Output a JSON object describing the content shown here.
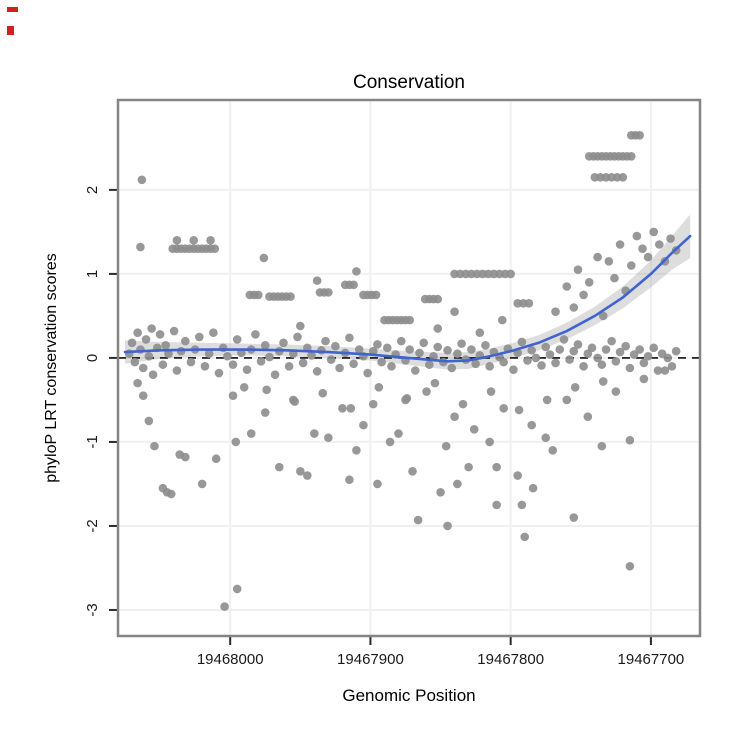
{
  "chart_data": {
    "type": "scatter",
    "title": "Conservation",
    "xlabel": "Genomic Position",
    "ylabel": "phyloP LRT conservation scores",
    "x_domain": [
      19468080,
      19467665
    ],
    "x_reversed": true,
    "y_domain": [
      -3.31,
      3.07
    ],
    "x_ticks": [
      19468000,
      19467900,
      19467800,
      19467700
    ],
    "x_tick_labels": [
      "19468000",
      "19467900",
      "19467800",
      "19467700"
    ],
    "y_ticks": [
      2,
      1,
      0,
      -1,
      -2,
      -3
    ],
    "y_tick_labels": [
      "2",
      "1",
      "0",
      "-1",
      "-2",
      "-3"
    ],
    "grid": true,
    "zero_line": 0,
    "colors": {
      "point": "#8d8d8d",
      "smooth_line": "#3f63cf",
      "band": "#9e9e9e",
      "grid": "#f0f0f0",
      "panel_border": "#858585",
      "tick": "#2b2b2b",
      "zero_dash": "#111111"
    },
    "smooth": {
      "x": [
        19468075,
        19468050,
        19468020,
        19467990,
        19467960,
        19467930,
        19467900,
        19467880,
        19467860,
        19467845,
        19467830,
        19467815,
        19467800,
        19467780,
        19467760,
        19467740,
        19467720,
        19467700,
        19467685,
        19467672
      ],
      "y": [
        0.07,
        0.09,
        0.1,
        0.1,
        0.09,
        0.07,
        0.04,
        0.01,
        -0.02,
        -0.04,
        -0.03,
        0.02,
        0.08,
        0.18,
        0.32,
        0.5,
        0.72,
        1.0,
        1.25,
        1.45
      ],
      "lo": [
        -0.07,
        -0.01,
        0.02,
        0.03,
        0.02,
        0.0,
        -0.03,
        -0.07,
        -0.11,
        -0.14,
        -0.13,
        -0.07,
        -0.01,
        0.09,
        0.22,
        0.39,
        0.59,
        0.84,
        1.05,
        1.19
      ],
      "hi": [
        0.21,
        0.19,
        0.18,
        0.17,
        0.16,
        0.14,
        0.11,
        0.09,
        0.07,
        0.06,
        0.07,
        0.11,
        0.17,
        0.27,
        0.42,
        0.61,
        0.85,
        1.16,
        1.45,
        1.71
      ]
    },
    "points": [
      [
        19468072,
        0.05
      ],
      [
        19468070,
        0.18
      ],
      [
        19468068,
        -0.05
      ],
      [
        19468066,
        0.3
      ],
      [
        19468064,
        0.1
      ],
      [
        19468062,
        -0.12
      ],
      [
        19468060,
        0.22
      ],
      [
        19468058,
        0.02
      ],
      [
        19468056,
        0.35
      ],
      [
        19468055,
        -0.2
      ],
      [
        19468052,
        0.12
      ],
      [
        19468050,
        0.28
      ],
      [
        19468048,
        -0.08
      ],
      [
        19468046,
        0.15
      ],
      [
        19468044,
        0.05
      ],
      [
        19468040,
        0.32
      ],
      [
        19468038,
        -0.15
      ],
      [
        19468035,
        0.08
      ],
      [
        19468032,
        0.2
      ],
      [
        19468028,
        -0.05
      ],
      [
        19468025,
        0.1
      ],
      [
        19468022,
        0.25
      ],
      [
        19468018,
        -0.1
      ],
      [
        19468015,
        0.05
      ],
      [
        19468012,
        0.3
      ],
      [
        19468008,
        -0.18
      ],
      [
        19468005,
        0.12
      ],
      [
        19468002,
        0.02
      ],
      [
        19467998,
        -0.08
      ],
      [
        19467995,
        0.22
      ],
      [
        19467992,
        0.06
      ],
      [
        19467988,
        -0.14
      ],
      [
        19467985,
        0.1
      ],
      [
        19467982,
        0.28
      ],
      [
        19467978,
        -0.04
      ],
      [
        19467975,
        0.15
      ],
      [
        19467972,
        0.01
      ],
      [
        19467968,
        -0.2
      ],
      [
        19467965,
        0.08
      ],
      [
        19467962,
        0.18
      ],
      [
        19467958,
        -0.1
      ],
      [
        19467955,
        0.05
      ],
      [
        19467952,
        0.25
      ],
      [
        19467948,
        -0.06
      ],
      [
        19467945,
        0.12
      ],
      [
        19467942,
        0.03
      ],
      [
        19467938,
        -0.16
      ],
      [
        19467935,
        0.09
      ],
      [
        19467932,
        0.2
      ],
      [
        19467928,
        -0.02
      ],
      [
        19467925,
        0.14
      ],
      [
        19467922,
        -0.12
      ],
      [
        19467918,
        0.06
      ],
      [
        19467915,
        0.24
      ],
      [
        19467912,
        -0.07
      ],
      [
        19467908,
        0.1
      ],
      [
        19467905,
        0.02
      ],
      [
        19467902,
        -0.18
      ],
      [
        19467898,
        0.08
      ],
      [
        19467895,
        0.16
      ],
      [
        19467892,
        -0.05
      ],
      [
        19467888,
        0.12
      ],
      [
        19467885,
        -0.1
      ],
      [
        19467882,
        0.04
      ],
      [
        19467878,
        0.2
      ],
      [
        19467875,
        -0.03
      ],
      [
        19467872,
        0.1
      ],
      [
        19467868,
        -0.15
      ],
      [
        19467865,
        0.06
      ],
      [
        19467862,
        0.18
      ],
      [
        19467858,
        -0.08
      ],
      [
        19467855,
        0.02
      ],
      [
        19467852,
        0.13
      ],
      [
        19467848,
        -0.05
      ],
      [
        19467845,
        0.09
      ],
      [
        19467842,
        -0.12
      ],
      [
        19467838,
        0.05
      ],
      [
        19467835,
        0.17
      ],
      [
        19467832,
        -0.02
      ],
      [
        19467828,
        0.1
      ],
      [
        19467825,
        -0.07
      ],
      [
        19467822,
        0.03
      ],
      [
        19467818,
        0.15
      ],
      [
        19467815,
        -0.1
      ],
      [
        19467812,
        0.07
      ],
      [
        19467808,
        0.01
      ],
      [
        19467805,
        -0.05
      ],
      [
        19467802,
        0.11
      ],
      [
        19467798,
        -0.14
      ],
      [
        19467795,
        0.06
      ],
      [
        19467792,
        0.19
      ],
      [
        19467788,
        -0.03
      ],
      [
        19467785,
        0.09
      ],
      [
        19467782,
        0.0
      ],
      [
        19467778,
        -0.09
      ],
      [
        19467775,
        0.13
      ],
      [
        19467772,
        0.04
      ],
      [
        19467768,
        -0.06
      ],
      [
        19467765,
        0.1
      ],
      [
        19467762,
        0.22
      ],
      [
        19467758,
        -0.02
      ],
      [
        19467755,
        0.08
      ],
      [
        19467752,
        0.16
      ],
      [
        19467748,
        -0.1
      ],
      [
        19467745,
        0.05
      ],
      [
        19467742,
        0.12
      ],
      [
        19467738,
        0.0
      ],
      [
        19467735,
        -0.08
      ],
      [
        19467732,
        0.1
      ],
      [
        19467728,
        0.2
      ],
      [
        19467725,
        -0.04
      ],
      [
        19467722,
        0.07
      ],
      [
        19467718,
        0.14
      ],
      [
        19467715,
        -0.12
      ],
      [
        19467712,
        0.04
      ],
      [
        19467708,
        0.1
      ],
      [
        19467705,
        -0.06
      ],
      [
        19467702,
        0.02
      ],
      [
        19467698,
        0.12
      ],
      [
        19467695,
        -0.15
      ],
      [
        19467692,
        0.05
      ],
      [
        19467688,
        0.0
      ],
      [
        19467685,
        -0.1
      ],
      [
        19467682,
        0.08
      ],
      [
        19468063,
        2.12
      ],
      [
        19468064,
        1.32
      ],
      [
        19468041,
        1.3
      ],
      [
        19468038,
        1.3
      ],
      [
        19468035,
        1.3
      ],
      [
        19468032,
        1.3
      ],
      [
        19468029,
        1.3
      ],
      [
        19468026,
        1.3
      ],
      [
        19468023,
        1.3
      ],
      [
        19468020,
        1.3
      ],
      [
        19468017,
        1.3
      ],
      [
        19468014,
        1.3
      ],
      [
        19468011,
        1.3
      ],
      [
        19468038,
        1.4
      ],
      [
        19468026,
        1.4
      ],
      [
        19468014,
        1.4
      ],
      [
        19467986,
        0.75
      ],
      [
        19467983,
        0.75
      ],
      [
        19467980,
        0.75
      ],
      [
        19467972,
        0.73
      ],
      [
        19467969,
        0.73
      ],
      [
        19467966,
        0.73
      ],
      [
        19467963,
        0.73
      ],
      [
        19467960,
        0.73
      ],
      [
        19467957,
        0.73
      ],
      [
        19467936,
        0.78
      ],
      [
        19467933,
        0.78
      ],
      [
        19467930,
        0.78
      ],
      [
        19467918,
        0.87
      ],
      [
        19467915,
        0.87
      ],
      [
        19467912,
        0.87
      ],
      [
        19467905,
        0.75
      ],
      [
        19467902,
        0.75
      ],
      [
        19467899,
        0.75
      ],
      [
        19467896,
        0.75
      ],
      [
        19467890,
        0.45
      ],
      [
        19467887,
        0.45
      ],
      [
        19467884,
        0.45
      ],
      [
        19467881,
        0.45
      ],
      [
        19467878,
        0.45
      ],
      [
        19467875,
        0.45
      ],
      [
        19467872,
        0.45
      ],
      [
        19467861,
        0.7
      ],
      [
        19467858,
        0.7
      ],
      [
        19467855,
        0.7
      ],
      [
        19467852,
        0.7
      ],
      [
        19467840,
        1.0
      ],
      [
        19467836,
        1.0
      ],
      [
        19467832,
        1.0
      ],
      [
        19467828,
        1.0
      ],
      [
        19467824,
        1.0
      ],
      [
        19467820,
        1.0
      ],
      [
        19467816,
        1.0
      ],
      [
        19467812,
        1.0
      ],
      [
        19467808,
        1.0
      ],
      [
        19467804,
        1.0
      ],
      [
        19467800,
        1.0
      ],
      [
        19467795,
        0.65
      ],
      [
        19467791,
        0.65
      ],
      [
        19467787,
        0.65
      ],
      [
        19467744,
        2.4
      ],
      [
        19467741,
        2.4
      ],
      [
        19467738,
        2.4
      ],
      [
        19467735,
        2.4
      ],
      [
        19467732,
        2.4
      ],
      [
        19467729,
        2.4
      ],
      [
        19467726,
        2.4
      ],
      [
        19467723,
        2.4
      ],
      [
        19467720,
        2.4
      ],
      [
        19467717,
        2.4
      ],
      [
        19467714,
        2.4
      ],
      [
        19467740,
        2.15
      ],
      [
        19467736,
        2.15
      ],
      [
        19467732,
        2.15
      ],
      [
        19467728,
        2.15
      ],
      [
        19467724,
        2.15
      ],
      [
        19467720,
        2.15
      ],
      [
        19467714,
        2.65
      ],
      [
        19467711,
        2.65
      ],
      [
        19467708,
        2.65
      ],
      [
        19467768,
        0.55
      ],
      [
        19467760,
        0.85
      ],
      [
        19467755,
        0.6
      ],
      [
        19467752,
        1.05
      ],
      [
        19467748,
        0.75
      ],
      [
        19467744,
        0.9
      ],
      [
        19467738,
        1.2
      ],
      [
        19467734,
        0.5
      ],
      [
        19467730,
        1.15
      ],
      [
        19467726,
        0.95
      ],
      [
        19467722,
        1.35
      ],
      [
        19467718,
        0.8
      ],
      [
        19467714,
        1.1
      ],
      [
        19467710,
        1.45
      ],
      [
        19467706,
        1.3
      ],
      [
        19467702,
        1.2
      ],
      [
        19467698,
        1.5
      ],
      [
        19467694,
        1.35
      ],
      [
        19467690,
        1.15
      ],
      [
        19467686,
        1.42
      ],
      [
        19467682,
        1.28
      ],
      [
        19467976,
        1.19
      ],
      [
        19467938,
        0.92
      ],
      [
        19467910,
        1.03
      ],
      [
        19467852,
        0.35
      ],
      [
        19467822,
        0.3
      ],
      [
        19467806,
        0.45
      ],
      [
        19467840,
        0.55
      ],
      [
        19467950,
        0.38
      ],
      [
        19468066,
        -0.3
      ],
      [
        19468062,
        -0.45
      ],
      [
        19468058,
        -0.75
      ],
      [
        19468054,
        -1.05
      ],
      [
        19468048,
        -1.55
      ],
      [
        19468045,
        -1.6
      ],
      [
        19468042,
        -1.62
      ],
      [
        19468036,
        -1.15
      ],
      [
        19468032,
        -1.18
      ],
      [
        19468020,
        -1.5
      ],
      [
        19468010,
        -1.2
      ],
      [
        19468004,
        -2.96
      ],
      [
        19467995,
        -2.75
      ],
      [
        19467996,
        -1.0
      ],
      [
        19467985,
        -0.9
      ],
      [
        19467975,
        -0.65
      ],
      [
        19467990,
        -0.35
      ],
      [
        19467965,
        -1.3
      ],
      [
        19467955,
        -0.5
      ],
      [
        19467950,
        -1.35
      ],
      [
        19467945,
        -1.4
      ],
      [
        19467940,
        -0.9
      ],
      [
        19467930,
        -0.95
      ],
      [
        19467920,
        -0.6
      ],
      [
        19467915,
        -1.45
      ],
      [
        19467910,
        -1.1
      ],
      [
        19467905,
        -0.8
      ],
      [
        19467898,
        -0.55
      ],
      [
        19467895,
        -1.5
      ],
      [
        19467886,
        -1.0
      ],
      [
        19467880,
        -0.9
      ],
      [
        19467875,
        -0.5
      ],
      [
        19467870,
        -1.35
      ],
      [
        19467866,
        -1.93
      ],
      [
        19467860,
        -0.4
      ],
      [
        19467850,
        -1.6
      ],
      [
        19467846,
        -1.05
      ],
      [
        19467845,
        -2.0
      ],
      [
        19467840,
        -0.7
      ],
      [
        19467838,
        -1.5
      ],
      [
        19467830,
        -1.3
      ],
      [
        19467826,
        -0.85
      ],
      [
        19467815,
        -1.0
      ],
      [
        19467810,
        -1.75
      ],
      [
        19467810,
        -1.3
      ],
      [
        19467805,
        -0.6
      ],
      [
        19467790,
        -2.13
      ],
      [
        19467795,
        -1.4
      ],
      [
        19467792,
        -1.75
      ],
      [
        19467784,
        -1.55
      ],
      [
        19467785,
        -0.8
      ],
      [
        19467775,
        -0.95
      ],
      [
        19467770,
        -1.1
      ],
      [
        19467760,
        -0.5
      ],
      [
        19467755,
        -1.9
      ],
      [
        19467745,
        -0.7
      ],
      [
        19467735,
        -1.05
      ],
      [
        19467725,
        -0.4
      ],
      [
        19467715,
        -2.48
      ],
      [
        19467715,
        -0.98
      ],
      [
        19467705,
        -0.25
      ],
      [
        19467690,
        -0.15
      ],
      [
        19467998,
        -0.45
      ],
      [
        19467974,
        -0.38
      ],
      [
        19467954,
        -0.52
      ],
      [
        19467934,
        -0.42
      ],
      [
        19467914,
        -0.6
      ],
      [
        19467894,
        -0.35
      ],
      [
        19467874,
        -0.48
      ],
      [
        19467854,
        -0.3
      ],
      [
        19467834,
        -0.55
      ],
      [
        19467814,
        -0.4
      ],
      [
        19467794,
        -0.62
      ],
      [
        19467774,
        -0.5
      ],
      [
        19467754,
        -0.35
      ],
      [
        19467734,
        -0.28
      ]
    ]
  }
}
